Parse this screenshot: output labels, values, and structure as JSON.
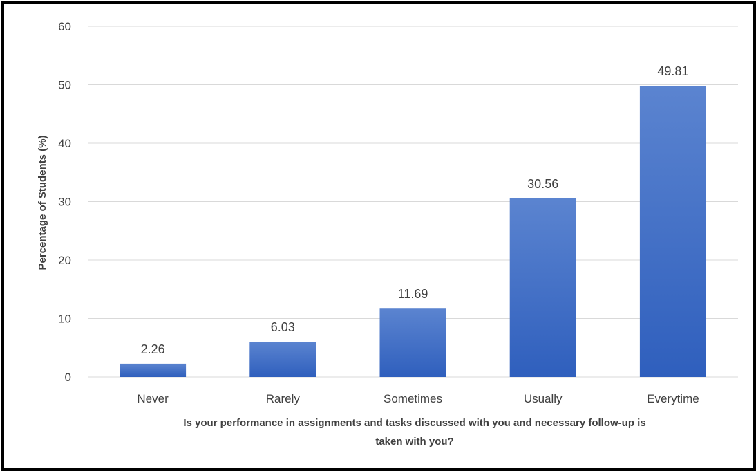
{
  "chart_data": {
    "type": "bar",
    "title": "",
    "categories": [
      "Never",
      "Rarely",
      "Sometimes",
      "Usually",
      "Everytime"
    ],
    "values": [
      2.26,
      6.03,
      11.69,
      30.56,
      49.81
    ],
    "data_labels": [
      "2.26",
      "6.03",
      "11.69",
      "30.56",
      "49.81"
    ],
    "ylabel": "Percentage of Students (%)",
    "xlabel_lines": [
      "Is your performance in assignments and tasks discussed with you and necessary follow-up is",
      "taken with you?"
    ],
    "ylim": [
      0,
      60
    ],
    "yticks": [
      "0",
      "10",
      "20",
      "30",
      "40",
      "50",
      "60"
    ],
    "grid": true,
    "legend": "none",
    "colors": {
      "bar_top": "#5b84d0",
      "bar_bottom": "#2f5fbd",
      "grid": "#d9d9d9",
      "text": "#404040"
    }
  }
}
